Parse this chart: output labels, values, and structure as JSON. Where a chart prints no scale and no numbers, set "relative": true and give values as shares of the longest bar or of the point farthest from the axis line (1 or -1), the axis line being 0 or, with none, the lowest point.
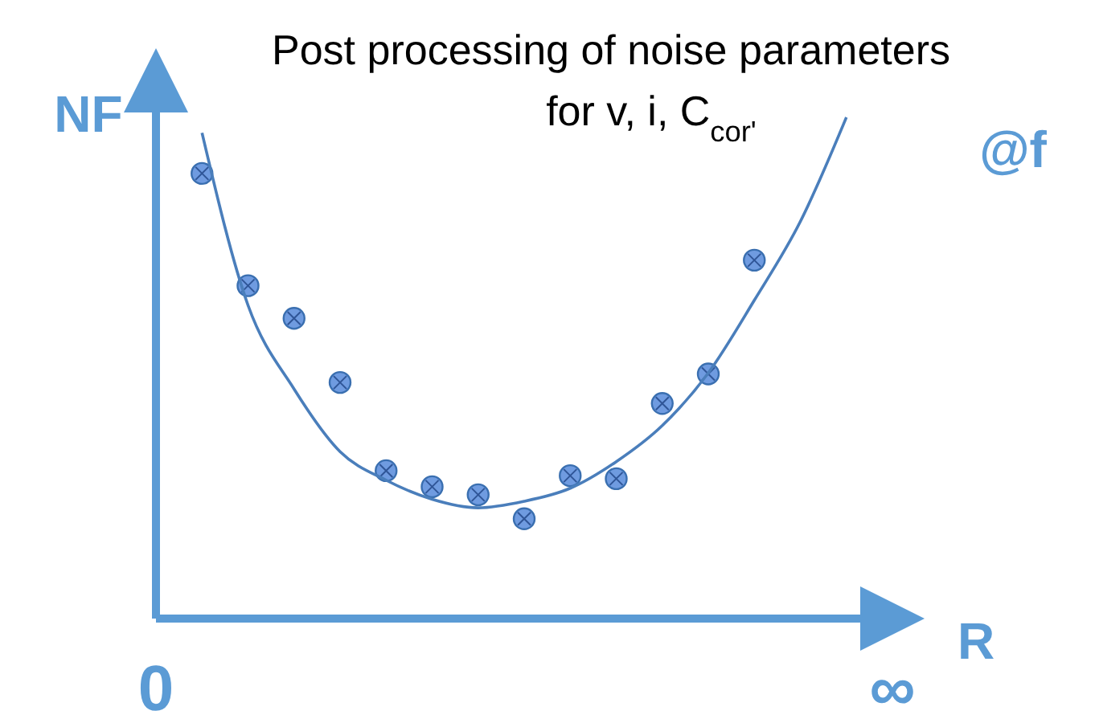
{
  "chart_data": {
    "type": "scatter",
    "title": "Post processing of noise parameters for v, i, C$_{cor'}$",
    "xlabel": "R",
    "ylabel": "NF",
    "annotations": [
      "@f"
    ],
    "relative": true,
    "marker": "circle",
    "categories": [
      "0",
      null,
      null,
      null,
      null,
      null,
      null,
      null,
      null,
      null,
      null,
      null,
      null,
      null,
      null,
      null,
      "∞"
    ],
    "series": [
      {
        "type": "scatter",
        "color": "#6f9be0",
        "values": [
          null,
          0.888,
          0.664,
          0.599,
          0.471,
          0.295,
          0.263,
          0.247,
          0.199,
          0.285,
          0.279,
          0.429,
          0.488,
          0.715,
          null,
          null,
          null
        ]
      },
      {
        "type": "line",
        "marker": "none",
        "color": "#4a7ebb",
        "values": [
          null,
          0.969,
          0.625,
          0.458,
          0.333,
          0.276,
          0.238,
          0.221,
          0.234,
          0.26,
          0.313,
          0.385,
          0.49,
          0.635,
          0.792,
          1.0,
          null
        ]
      }
    ]
  }
}
